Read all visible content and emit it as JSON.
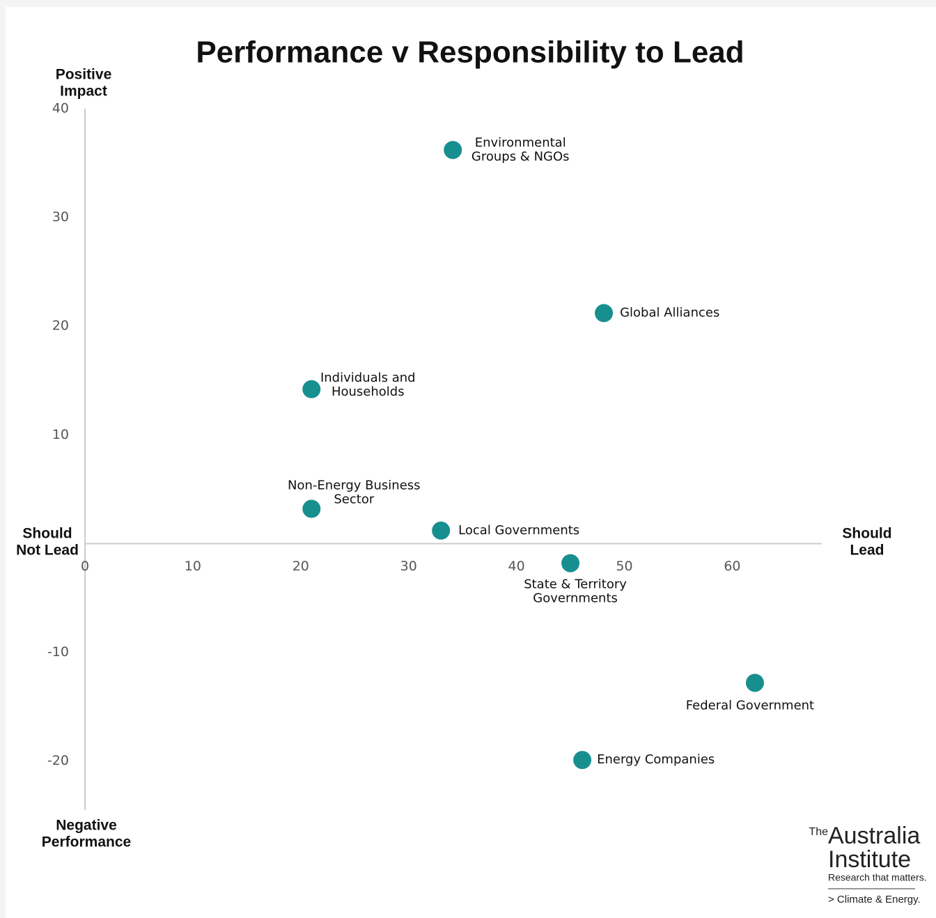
{
  "chart_data": {
    "type": "scatter",
    "title": "Performance v Responsibility to Lead",
    "series": [
      {
        "color": "#178f8f",
        "x": [
          34.1,
          48.1,
          21.0,
          21.0,
          33.0,
          45.0,
          62.1,
          46.1
        ],
        "values": [
          36.2,
          21.2,
          14.2,
          3.2,
          1.2,
          -1.8,
          -12.8,
          -19.9
        ],
        "labels": [
          [
            "Environmental",
            "Groups & NGOs"
          ],
          [
            "Global Alliances"
          ],
          [
            "Individuals and",
            "Households"
          ],
          [
            "Non-Energy Business",
            "Sector"
          ],
          [
            "Local Governments"
          ],
          [
            "State & Territory",
            "Governments"
          ],
          [
            "Federal Government"
          ],
          [
            "Energy Companies"
          ]
        ]
      }
    ],
    "xlim": [
      0,
      68.3
    ],
    "ylim": [
      -24.5,
      40
    ],
    "xticks": [
      0,
      10,
      20,
      30,
      40,
      50,
      60
    ],
    "yticks": [
      -20,
      -10,
      10,
      20,
      30,
      40
    ],
    "quadrant_labels": {
      "top": [
        "Positive",
        "Impact"
      ],
      "bottom": [
        "Negative",
        "Performance"
      ],
      "left": [
        "Should",
        "Not Lead"
      ],
      "right": [
        "Should",
        "Lead"
      ]
    }
  },
  "footer": {
    "the": "The",
    "name1": "Australia",
    "name2": "Institute",
    "tagline": "Research that matters.",
    "program": "> Climate & Energy."
  }
}
